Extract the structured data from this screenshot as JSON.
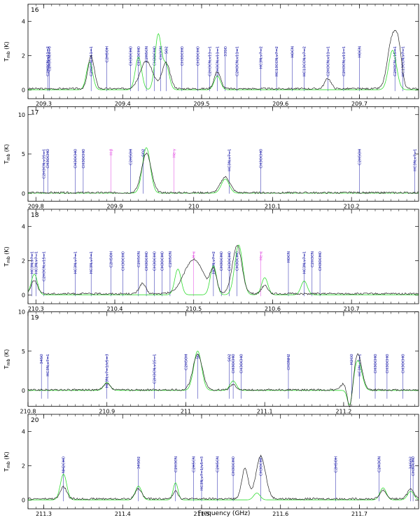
{
  "figure": {
    "xlabel": "Frequency (GHz)",
    "ylabel": "T",
    "ylabel_sub": "mb",
    "ylabel_unit": "(K)"
  },
  "colors": {
    "observed": "#222222",
    "model": "#33dd33",
    "marker_blue": "#1a1aa8",
    "marker_magenta": "#e040e0",
    "axes": "#000000"
  },
  "chart_data": [
    {
      "panel": "16",
      "type": "line",
      "xlim": [
        209.28,
        209.775
      ],
      "ylim": [
        -0.5,
        5
      ],
      "xticks": [
        209.3,
        209.4,
        209.5,
        209.6,
        209.7
      ],
      "yticks": [
        0,
        2,
        4
      ],
      "peaks": [
        [
          209.36,
          1.9,
          0.004
        ],
        [
          209.43,
          1.6,
          0.008
        ],
        [
          209.455,
          1.5,
          0.005
        ],
        [
          209.52,
          1.0,
          0.004
        ],
        [
          209.66,
          0.6,
          0.004
        ],
        [
          209.742,
          3.0,
          0.006
        ],
        [
          209.75,
          1.6,
          0.004
        ]
      ],
      "model_peaks": [
        [
          209.358,
          1.6,
          0.004
        ],
        [
          209.42,
          1.9,
          0.004
        ],
        [
          209.445,
          3.2,
          0.004
        ],
        [
          209.455,
          1.4,
          0.004
        ],
        [
          209.52,
          0.8,
          0.004
        ],
        [
          209.742,
          2.3,
          0.005
        ]
      ],
      "markers": [
        {
          "x": 209.305,
          "label": "C2H3CN,v11=2",
          "c": "b"
        },
        {
          "x": 209.307,
          "label": "C2H5CN,v=0",
          "c": "b"
        },
        {
          "x": 209.36,
          "label": "C2H3CN,v11=1",
          "c": "b"
        },
        {
          "x": 209.38,
          "label": "C2H5OH",
          "c": "b"
        },
        {
          "x": 209.41,
          "label": "CH3OCHO",
          "c": "b"
        },
        {
          "x": 209.42,
          "label": "CH3OCHO",
          "c": "b"
        },
        {
          "x": 209.43,
          "label": "C2H5CN",
          "c": "b"
        },
        {
          "x": 209.44,
          "label": "CH3OCHO",
          "c": "b"
        },
        {
          "x": 209.448,
          "label": "CH3CN",
          "c": "b"
        },
        {
          "x": 209.455,
          "label": "SO2",
          "c": "b"
        },
        {
          "x": 209.475,
          "label": "CH3OCHO",
          "c": "b"
        },
        {
          "x": 209.495,
          "label": "CH3OCHO",
          "c": "b"
        },
        {
          "x": 209.51,
          "label": "C2H3CN,v11=1",
          "c": "b"
        },
        {
          "x": 209.52,
          "label": "C2H3CN,v11=1",
          "c": "b"
        },
        {
          "x": 209.53,
          "label": "33SO",
          "c": "b"
        },
        {
          "x": 209.545,
          "label": "C2H3CN,v11=1",
          "c": "b"
        },
        {
          "x": 209.575,
          "label": "HC3N,v7=2",
          "c": "b"
        },
        {
          "x": 209.595,
          "label": "HC13CCN,v7=2",
          "c": "b"
        },
        {
          "x": 209.615,
          "label": "HOCN",
          "c": "b"
        },
        {
          "x": 209.63,
          "label": "HC13CCN,v7=2",
          "c": "b"
        },
        {
          "x": 209.66,
          "label": "C2H3CN,v11=1",
          "c": "b"
        },
        {
          "x": 209.68,
          "label": "C2H3CN,v11=1",
          "c": "b"
        },
        {
          "x": 209.7,
          "label": "HOCN",
          "c": "b"
        },
        {
          "x": 209.745,
          "label": "C2H3CN,v15=1",
          "c": "b"
        },
        {
          "x": 209.755,
          "label": "HC13CCN,v7=1",
          "c": "b"
        }
      ]
    },
    {
      "panel": "17",
      "type": "line",
      "xlim": [
        209.79,
        210.285
      ],
      "ylim": [
        -1,
        11
      ],
      "xticks": [
        209.8,
        209.9,
        210,
        210.1,
        210.2
      ],
      "yticks": [
        0,
        5,
        10
      ],
      "peaks": [
        [
          209.94,
          5.0,
          0.006
        ],
        [
          210.04,
          2.0,
          0.006
        ]
      ],
      "model_peaks": [
        [
          209.94,
          5.8,
          0.005
        ],
        [
          210.04,
          1.8,
          0.005
        ]
      ],
      "markers": [
        {
          "x": 209.81,
          "label": "C2H3CN,v15=1",
          "c": "b"
        },
        {
          "x": 209.815,
          "label": "CH3OCHO",
          "c": "b"
        },
        {
          "x": 209.85,
          "label": "CH3OCHO",
          "c": "b"
        },
        {
          "x": 209.86,
          "label": "CH3OCHO",
          "c": "b"
        },
        {
          "x": 209.895,
          "label": "H β",
          "c": "m"
        },
        {
          "x": 209.92,
          "label": "C2H5OH",
          "c": "b"
        },
        {
          "x": 209.936,
          "label": "SO2",
          "c": "b"
        },
        {
          "x": 209.975,
          "label": "He γ",
          "c": "m"
        },
        {
          "x": 210.045,
          "label": "HC3N,v7=1",
          "c": "b"
        },
        {
          "x": 210.085,
          "label": "CH3OCHO",
          "c": "b"
        },
        {
          "x": 210.21,
          "label": "C2H5OH",
          "c": "b"
        },
        {
          "x": 210.28,
          "label": "HC3N,v7=1",
          "c": "b"
        }
      ]
    },
    {
      "panel": "18",
      "type": "line",
      "xlim": [
        210.29,
        210.785
      ],
      "ylim": [
        -0.5,
        5
      ],
      "xticks": [
        210.3,
        210.4,
        210.5,
        210.6,
        210.7
      ],
      "yticks": [
        0,
        2,
        4
      ],
      "peaks": [
        [
          210.298,
          0.8,
          0.004
        ],
        [
          210.435,
          0.6,
          0.004
        ],
        [
          210.5,
          2.0,
          0.012
        ],
        [
          210.525,
          1.3,
          0.004
        ],
        [
          210.555,
          2.8,
          0.006
        ],
        [
          210.59,
          0.5,
          0.004
        ]
      ],
      "model_peaks": [
        [
          210.298,
          1.2,
          0.004
        ],
        [
          210.48,
          1.5,
          0.004
        ],
        [
          210.525,
          1.7,
          0.004
        ],
        [
          210.557,
          2.9,
          0.005
        ],
        [
          210.59,
          1.0,
          0.004
        ],
        [
          210.64,
          0.8,
          0.004
        ]
      ],
      "markers": [
        {
          "x": 210.295,
          "label": "HC3N,v7=1",
          "c": "b"
        },
        {
          "x": 210.3,
          "label": "HC3N,v7=1",
          "c": "b"
        },
        {
          "x": 210.31,
          "label": "C2H3CN,v15=1",
          "c": "b"
        },
        {
          "x": 210.35,
          "label": "HC3N,v7=1",
          "c": "b"
        },
        {
          "x": 210.37,
          "label": "HC3N,v7=1",
          "c": "b"
        },
        {
          "x": 210.395,
          "label": "C2H5OH",
          "c": "b"
        },
        {
          "x": 210.41,
          "label": "CH3OCHO",
          "c": "b"
        },
        {
          "x": 210.43,
          "label": "C2H5CN",
          "c": "b"
        },
        {
          "x": 210.44,
          "label": "CH3OCHO",
          "c": "b"
        },
        {
          "x": 210.45,
          "label": "CH3OCHO",
          "c": "b"
        },
        {
          "x": 210.46,
          "label": "CH3OCHO",
          "c": "b"
        },
        {
          "x": 210.47,
          "label": "C2H5CN",
          "c": "b"
        },
        {
          "x": 210.5,
          "label": "H α",
          "c": "m"
        },
        {
          "x": 210.525,
          "label": "HC3N,v7=2",
          "c": "b"
        },
        {
          "x": 210.535,
          "label": "CH3OCHO",
          "c": "b"
        },
        {
          "x": 210.545,
          "label": "CH3OCHO",
          "c": "b"
        },
        {
          "x": 210.555,
          "label": "CH3OCHO",
          "c": "b"
        },
        {
          "x": 210.585,
          "label": "He α",
          "c": "m"
        },
        {
          "x": 210.62,
          "label": "HOCN",
          "c": "b"
        },
        {
          "x": 210.64,
          "label": "HC3N,v7=1",
          "c": "b"
        },
        {
          "x": 210.65,
          "label": "C2H3CN",
          "c": "b"
        },
        {
          "x": 210.66,
          "label": "CH3OCHO",
          "c": "b"
        }
      ]
    },
    {
      "panel": "19",
      "type": "line",
      "xlim": [
        210.8,
        211.295
      ],
      "ylim": [
        -2,
        10
      ],
      "xticks": [
        210.8,
        210.9,
        211,
        211.1,
        211.2
      ],
      "yticks": [
        0,
        5,
        10
      ],
      "peaks": [
        [
          210.9,
          0.8,
          0.004
        ],
        [
          211.015,
          4.5,
          0.006
        ],
        [
          211.06,
          0.7,
          0.004
        ],
        [
          211.218,
          4.5,
          0.005
        ],
        [
          211.2,
          0.8,
          0.004
        ],
        [
          211.208,
          -2.8,
          0.003
        ]
      ],
      "model_peaks": [
        [
          210.9,
          1.0,
          0.004
        ],
        [
          211.015,
          5.0,
          0.005
        ],
        [
          211.06,
          1.2,
          0.004
        ],
        [
          211.218,
          3.8,
          0.005
        ],
        [
          211.208,
          -2.3,
          0.003
        ]
      ],
      "markers": [
        {
          "x": 210.817,
          "label": "34SO",
          "c": "b"
        },
        {
          "x": 210.825,
          "label": "HC3N,v7=1",
          "c": "b"
        },
        {
          "x": 210.9,
          "label": "HC3N,v7=1/v5=3",
          "c": "b"
        },
        {
          "x": 210.96,
          "label": "C2H3CN,v15=1",
          "c": "b"
        },
        {
          "x": 211.0,
          "label": "C2H5OH",
          "c": "b"
        },
        {
          "x": 211.015,
          "label": "SO",
          "c": "b"
        },
        {
          "x": 211.055,
          "label": "SO2",
          "c": "b"
        },
        {
          "x": 211.06,
          "label": "CH3OCHO",
          "c": "b"
        },
        {
          "x": 211.07,
          "label": "CH3OCHO",
          "c": "b"
        },
        {
          "x": 211.13,
          "label": "CH3NH2",
          "c": "b"
        },
        {
          "x": 211.21,
          "label": "H2CO",
          "c": "b"
        },
        {
          "x": 211.22,
          "label": "HC3N,v7=1",
          "c": "b"
        },
        {
          "x": 211.24,
          "label": "CH3OCHO",
          "c": "b"
        },
        {
          "x": 211.255,
          "label": "CH3OCHO",
          "c": "b"
        },
        {
          "x": 211.275,
          "label": "CH3OCHO",
          "c": "b"
        }
      ]
    },
    {
      "panel": "20",
      "type": "line",
      "xlim": [
        211.28,
        211.775
      ],
      "ylim": [
        -0.5,
        5
      ],
      "xticks": [
        211.3,
        211.4,
        211.5,
        211.6,
        211.7
      ],
      "yticks": [
        0,
        2,
        4
      ],
      "peaks": [
        [
          211.325,
          0.7,
          0.004
        ],
        [
          211.42,
          0.6,
          0.004
        ],
        [
          211.467,
          0.5,
          0.003
        ],
        [
          211.555,
          1.8,
          0.004
        ],
        [
          211.575,
          2.5,
          0.006
        ],
        [
          211.73,
          0.5,
          0.004
        ],
        [
          211.765,
          0.6,
          0.004
        ]
      ],
      "model_peaks": [
        [
          211.325,
          1.5,
          0.004
        ],
        [
          211.42,
          0.8,
          0.004
        ],
        [
          211.467,
          1.0,
          0.003
        ],
        [
          211.57,
          0.4,
          0.004
        ],
        [
          211.73,
          0.7,
          0.004
        ],
        [
          211.765,
          0.5,
          0.004
        ]
      ],
      "markers": [
        {
          "x": 211.325,
          "label": "NH2CHO",
          "c": "b"
        },
        {
          "x": 211.42,
          "label": "34SO2",
          "c": "b"
        },
        {
          "x": 211.467,
          "label": "C2H3CN",
          "c": "b"
        },
        {
          "x": 211.49,
          "label": "C2H5CN",
          "c": "b"
        },
        {
          "x": 211.5,
          "label": "HC3N,v7=1/v5=3",
          "c": "b"
        },
        {
          "x": 211.52,
          "label": "C2H5CN",
          "c": "b"
        },
        {
          "x": 211.54,
          "label": "CH3OCHO",
          "c": "b"
        },
        {
          "x": 211.575,
          "label": "CH3OCHO",
          "c": "b"
        },
        {
          "x": 211.67,
          "label": "C2H5OH",
          "c": "b"
        },
        {
          "x": 211.725,
          "label": "C2H3CN",
          "c": "b"
        },
        {
          "x": 211.765,
          "label": "34SO2",
          "c": "b"
        },
        {
          "x": 211.768,
          "label": "CH3OCHO",
          "c": "b"
        }
      ]
    }
  ]
}
